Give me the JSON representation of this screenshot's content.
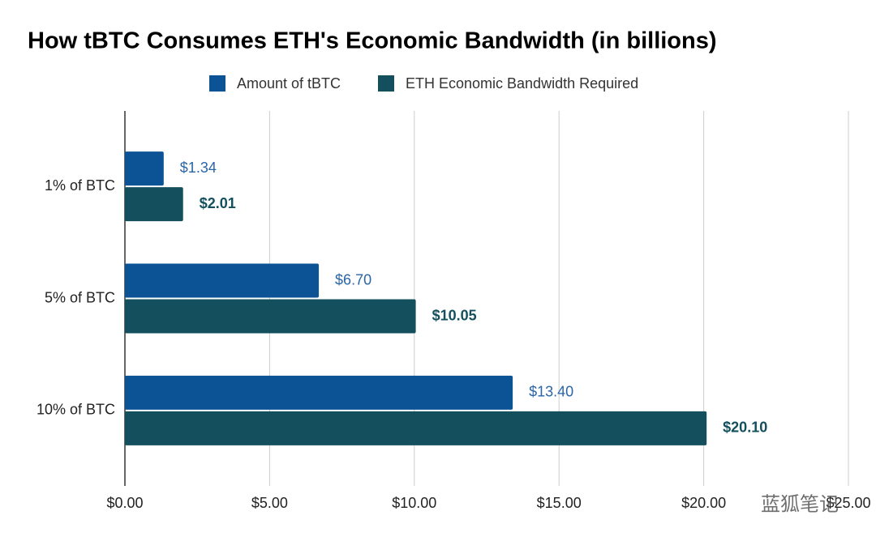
{
  "chart_data": {
    "type": "hbar",
    "title": "How tBTC Consumes ETH's Economic Bandwidth (in billions)",
    "categories": [
      "1% of BTC",
      "5% of BTC",
      "10% of BTC"
    ],
    "series": [
      {
        "name": "Amount of tBTC",
        "color": "#0b5394",
        "values": [
          1.34,
          6.7,
          13.4
        ],
        "value_labels": [
          "$1.34",
          "$6.70",
          "$13.40"
        ]
      },
      {
        "name": "ETH Economic Bandwidth Required",
        "color": "#134f5c",
        "values": [
          2.01,
          10.05,
          20.1
        ],
        "value_labels": [
          "$2.01",
          "$10.05",
          "$20.10"
        ]
      }
    ],
    "xlim": [
      0,
      25
    ],
    "xticks": [
      {
        "value": 0,
        "label": "$0.00"
      },
      {
        "value": 5,
        "label": "$5.00"
      },
      {
        "value": 10,
        "label": "$10.00"
      },
      {
        "value": 15,
        "label": "$15.00"
      },
      {
        "value": 20,
        "label": "$20.00"
      },
      {
        "value": 25,
        "label": "$25.00"
      }
    ],
    "grid": true,
    "legend": "top"
  },
  "watermark": "蓝狐笔记"
}
